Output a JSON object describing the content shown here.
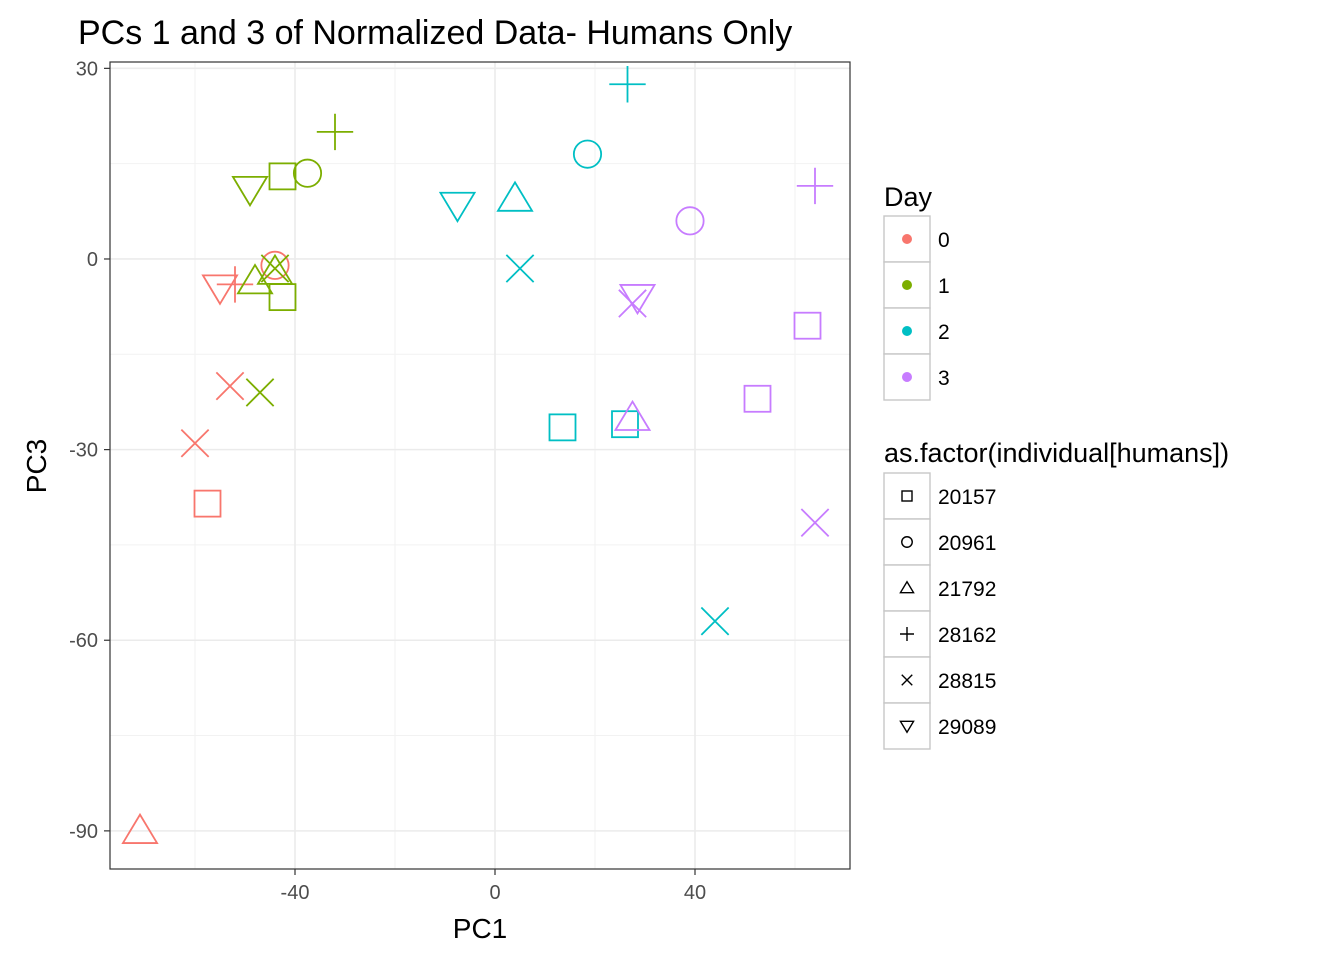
{
  "chart_data": {
    "type": "scatter",
    "title": "PCs 1 and 3 of Normalized Data- Humans Only",
    "xlabel": "PC1",
    "ylabel": "PC3",
    "xlim": [
      -77,
      71
    ],
    "ylim": [
      -96,
      31
    ],
    "x_ticks": [
      -40,
      0,
      40
    ],
    "y_ticks": [
      30,
      0,
      -30,
      -60,
      -90
    ],
    "x_tick_labels": [
      "-40",
      "0",
      "40"
    ],
    "y_tick_labels": [
      "30",
      "0",
      "-30",
      "-60",
      "-90"
    ],
    "grid": true,
    "legend_position": "right",
    "color_legend": {
      "title": "Day",
      "entries": [
        {
          "label": "0",
          "color": "#F8766D"
        },
        {
          "label": "1",
          "color": "#7CAE00"
        },
        {
          "label": "2",
          "color": "#00BFC4"
        },
        {
          "label": "3",
          "color": "#C77CFF"
        }
      ]
    },
    "shape_legend": {
      "title": "as.factor(individual[humans])",
      "entries": [
        {
          "label": "20157",
          "shape": "square"
        },
        {
          "label": "20961",
          "shape": "circle"
        },
        {
          "label": "21792",
          "shape": "triangle"
        },
        {
          "label": "28162",
          "shape": "plus"
        },
        {
          "label": "28815",
          "shape": "cross"
        },
        {
          "label": "29089",
          "shape": "triangle-down"
        }
      ]
    },
    "points": [
      {
        "x": -57.5,
        "y": -38.5,
        "day": "0",
        "individual": "20157"
      },
      {
        "x": -44,
        "y": -1,
        "day": "0",
        "individual": "20961"
      },
      {
        "x": -71,
        "y": -90,
        "day": "0",
        "individual": "21792"
      },
      {
        "x": -52,
        "y": -4,
        "day": "0",
        "individual": "28162"
      },
      {
        "x": -60,
        "y": -29,
        "day": "0",
        "individual": "28815"
      },
      {
        "x": -53,
        "y": -20,
        "day": "0",
        "individual": "28815"
      },
      {
        "x": -55,
        "y": -4.5,
        "day": "0",
        "individual": "29089"
      },
      {
        "x": -42.5,
        "y": 13,
        "day": "1",
        "individual": "20157"
      },
      {
        "x": -42.5,
        "y": -6,
        "day": "1",
        "individual": "20157"
      },
      {
        "x": -37.5,
        "y": 13.5,
        "day": "1",
        "individual": "20961"
      },
      {
        "x": -44,
        "y": -2,
        "day": "1",
        "individual": "21792"
      },
      {
        "x": -48,
        "y": -3.5,
        "day": "1",
        "individual": "21792"
      },
      {
        "x": -32,
        "y": 20,
        "day": "1",
        "individual": "28162"
      },
      {
        "x": -44,
        "y": -1.5,
        "day": "1",
        "individual": "28815"
      },
      {
        "x": -47,
        "y": -21,
        "day": "1",
        "individual": "28815"
      },
      {
        "x": -49,
        "y": 11,
        "day": "1",
        "individual": "29089"
      },
      {
        "x": 13.5,
        "y": -26.5,
        "day": "2",
        "individual": "20157"
      },
      {
        "x": 26,
        "y": -26,
        "day": "2",
        "individual": "20157"
      },
      {
        "x": 18.5,
        "y": 16.5,
        "day": "2",
        "individual": "20961"
      },
      {
        "x": 4,
        "y": 9.5,
        "day": "2",
        "individual": "21792"
      },
      {
        "x": 26.5,
        "y": 27.5,
        "day": "2",
        "individual": "28162"
      },
      {
        "x": 5,
        "y": -1.5,
        "day": "2",
        "individual": "28815"
      },
      {
        "x": 44,
        "y": -57,
        "day": "2",
        "individual": "28815"
      },
      {
        "x": -7.5,
        "y": 8.5,
        "day": "2",
        "individual": "29089"
      },
      {
        "x": 52.5,
        "y": -22,
        "day": "3",
        "individual": "20157"
      },
      {
        "x": 62.5,
        "y": -10.5,
        "day": "3",
        "individual": "20157"
      },
      {
        "x": 39,
        "y": 6,
        "day": "3",
        "individual": "20961"
      },
      {
        "x": 27.5,
        "y": -25,
        "day": "3",
        "individual": "21792"
      },
      {
        "x": 64,
        "y": 11.5,
        "day": "3",
        "individual": "28162"
      },
      {
        "x": 27.5,
        "y": -7,
        "day": "3",
        "individual": "28815"
      },
      {
        "x": 64,
        "y": -41.5,
        "day": "3",
        "individual": "28815"
      },
      {
        "x": 28.5,
        "y": -6,
        "day": "3",
        "individual": "29089"
      }
    ]
  }
}
